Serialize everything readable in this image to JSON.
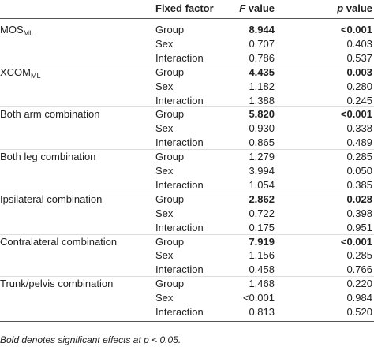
{
  "table": {
    "header": {
      "factor": "Fixed factor",
      "f": {
        "symbol": "F",
        "text": " value"
      },
      "p": {
        "symbol": "p",
        "text": " value"
      }
    },
    "groups": [
      {
        "label": "MOS",
        "sub": "ML",
        "rows": [
          {
            "factor": "Group",
            "f": "8.944",
            "p": "<0.001",
            "bold": true
          },
          {
            "factor": "Sex",
            "f": "0.707",
            "p": "0.403"
          },
          {
            "factor": "Interaction",
            "f": "0.786",
            "p": "0.537"
          }
        ]
      },
      {
        "label": "XCOM",
        "sub": "ML",
        "rows": [
          {
            "factor": "Group",
            "f": "4.435",
            "p": "0.003",
            "bold": true
          },
          {
            "factor": "Sex",
            "f": "1.182",
            "p": "0.280"
          },
          {
            "factor": "Interaction",
            "f": "1.388",
            "p": "0.245"
          }
        ]
      },
      {
        "label": "Both arm combination",
        "rows": [
          {
            "factor": "Group",
            "f": "5.820",
            "p": "<0.001",
            "bold": true
          },
          {
            "factor": "Sex",
            "f": "0.930",
            "p": "0.338"
          },
          {
            "factor": "Interaction",
            "f": "0.865",
            "p": "0.489"
          }
        ]
      },
      {
        "label": "Both leg combination",
        "rows": [
          {
            "factor": "Group",
            "f": "1.279",
            "p": "0.285"
          },
          {
            "factor": "Sex",
            "f": "3.994",
            "p": "0.050"
          },
          {
            "factor": "Interaction",
            "f": "1.054",
            "p": "0.385"
          }
        ]
      },
      {
        "label": "Ipsilateral combination",
        "rows": [
          {
            "factor": "Group",
            "f": "2.862",
            "p": "0.028",
            "bold": true
          },
          {
            "factor": "Sex",
            "f": "0.722",
            "p": "0.398"
          },
          {
            "factor": "Interaction",
            "f": "0.175",
            "p": "0.951"
          }
        ]
      },
      {
        "label": "Contralateral combination",
        "rows": [
          {
            "factor": "Group",
            "f": "7.919",
            "p": "<0.001",
            "bold": true
          },
          {
            "factor": "Sex",
            "f": "1.156",
            "p": "0.285"
          },
          {
            "factor": "Interaction",
            "f": "0.458",
            "p": "0.766"
          }
        ]
      },
      {
        "label": "Trunk/pelvis combination",
        "rows": [
          {
            "factor": "Group",
            "f": "1.468",
            "p": "0.220"
          },
          {
            "factor": "Sex",
            "f": "<0.001",
            "p": "0.984"
          },
          {
            "factor": "Interaction",
            "f": "0.813",
            "p": "0.520"
          }
        ]
      }
    ],
    "footnote": {
      "before": "Bold denotes significant effects at ",
      "symbol": "p",
      "after": " < 0.05."
    }
  }
}
